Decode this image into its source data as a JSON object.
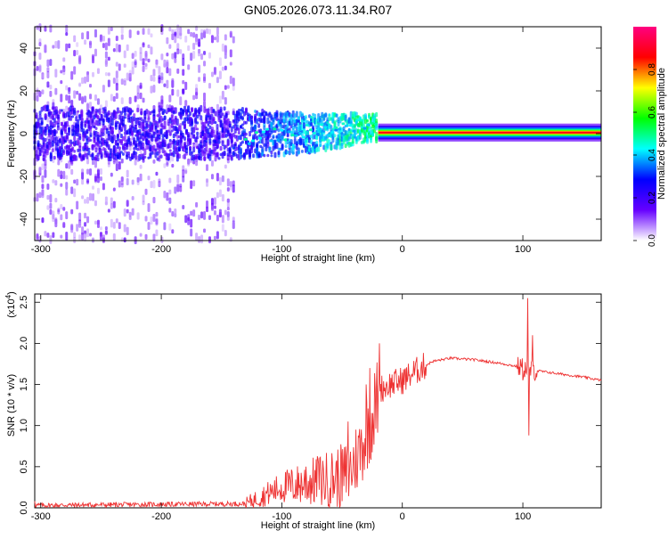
{
  "title": "GN05.2026.073.11.34.R07",
  "chart_data": [
    {
      "type": "heatmap",
      "xlabel": "Height of straight line (km)",
      "ylabel": "Frequency (Hz)",
      "xlim": [
        -305,
        165
      ],
      "ylim": [
        -50,
        50
      ],
      "xticks": [
        -300,
        -200,
        -100,
        0,
        100
      ],
      "yticks": [
        -40,
        -20,
        0,
        20,
        40
      ],
      "colorbar": {
        "label": "Normalized spectral amplitude",
        "range": [
          0,
          1
        ],
        "ticks": [
          "0.0",
          "0.2",
          "0.4",
          "0.6",
          "0.8"
        ],
        "tick_values": [
          0.0,
          0.2,
          0.4,
          0.6,
          0.8
        ],
        "colormap": [
          "#ffffff",
          "#6600ff",
          "#0000ff",
          "#00ffff",
          "#00ff00",
          "#ffff00",
          "#ff0000",
          "#ff0080"
        ]
      },
      "features": {
        "scatter_region_x": [
          -305,
          -140
        ],
        "transition_region_x": [
          -140,
          -20
        ],
        "carrier_region_x": [
          -20,
          165
        ],
        "carrier_frequency": 0.5
      }
    },
    {
      "type": "line",
      "xlabel": "Height of straight line (km)",
      "ylabel": "SNR (10 * v/v)",
      "exponent_label": "(x10",
      "exponent_sup": "4",
      "exponent_close": ")",
      "xlim": [
        -305,
        165
      ],
      "ylim": [
        0,
        2.6
      ],
      "xticks": [
        -300,
        -200,
        -100,
        0,
        100
      ],
      "yticks": [
        "0.0",
        "0.5",
        "1.0",
        "1.5",
        "2.0",
        "2.5"
      ],
      "ytick_values": [
        0.0,
        0.5,
        1.0,
        1.5,
        2.0,
        2.5
      ],
      "series": [
        {
          "color": "#ee3333",
          "keypoints": [
            [
              -305,
              0.03
            ],
            [
              -130,
              0.05
            ],
            [
              -115,
              0.15
            ],
            [
              -100,
              0.25
            ],
            [
              -80,
              0.3
            ],
            [
              -60,
              0.35
            ],
            [
              -45,
              0.4
            ],
            [
              -35,
              0.7
            ],
            [
              -25,
              1.1
            ],
            [
              -18,
              1.45
            ],
            [
              -10,
              1.5
            ],
            [
              0,
              1.55
            ],
            [
              10,
              1.65
            ],
            [
              25,
              1.78
            ],
            [
              40,
              1.82
            ],
            [
              60,
              1.8
            ],
            [
              80,
              1.76
            ],
            [
              95,
              1.72
            ],
            [
              100,
              1.7
            ],
            [
              110,
              1.67
            ],
            [
              130,
              1.63
            ],
            [
              150,
              1.59
            ],
            [
              165,
              1.55
            ]
          ],
          "spikes": [
            [
              -19,
              2.0
            ],
            [
              -27,
              1.7
            ],
            [
              -30,
              1.5
            ],
            [
              -45,
              1.05
            ],
            [
              -70,
              0.6
            ],
            [
              -80,
              0.5
            ],
            [
              104,
              2.55
            ],
            [
              105,
              0.88
            ],
            [
              108,
              2.1
            ],
            [
              100,
              1.55
            ],
            [
              -305,
              0.08
            ]
          ]
        }
      ]
    }
  ]
}
